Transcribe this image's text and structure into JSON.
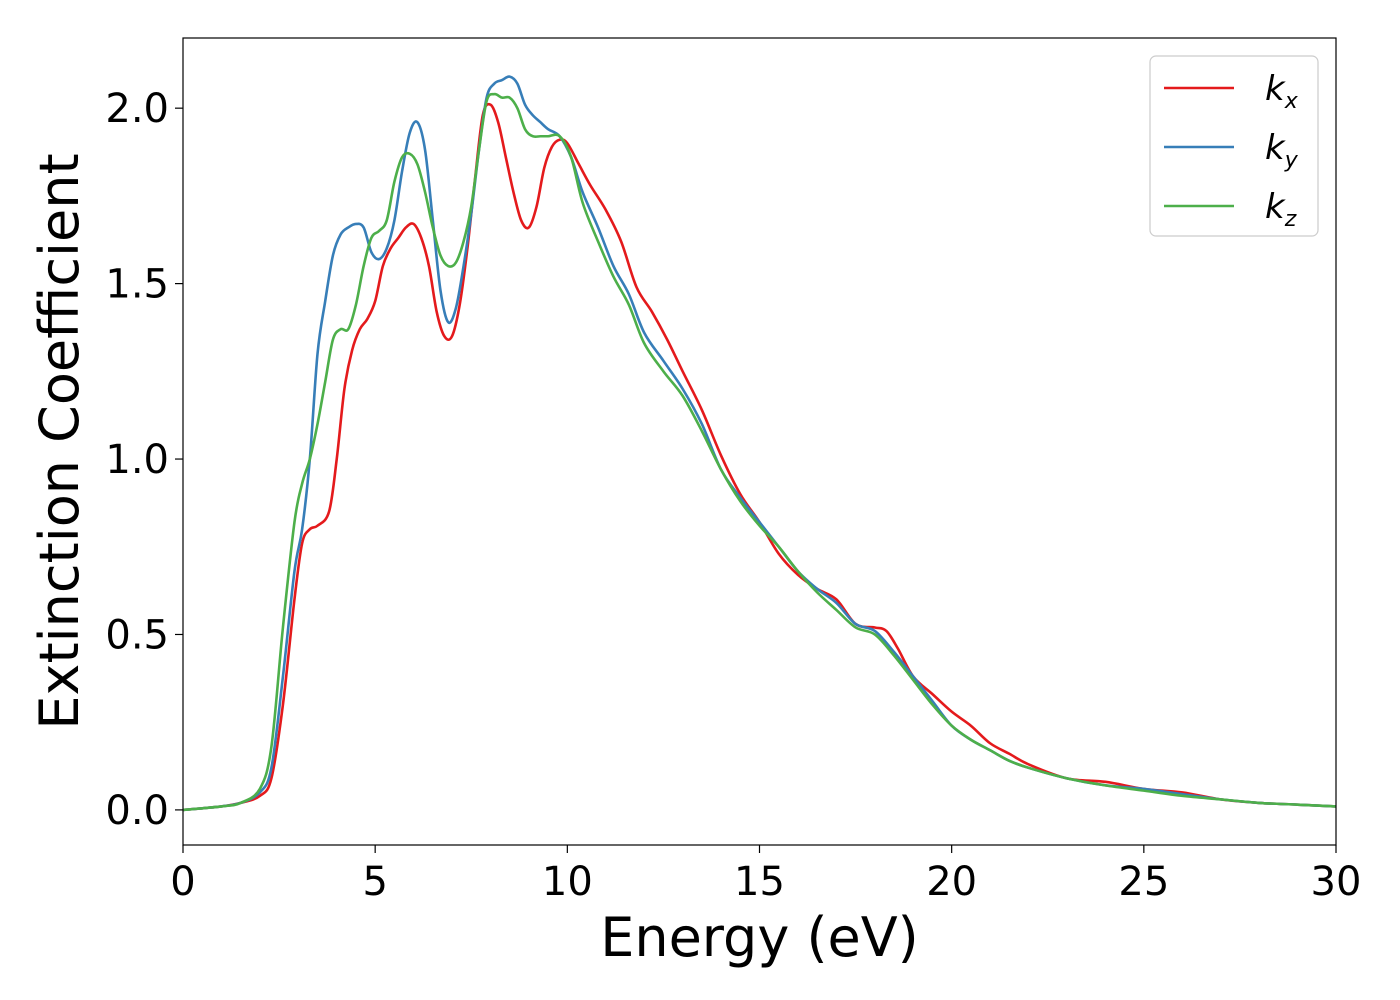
{
  "chart_data": {
    "type": "line",
    "title": "",
    "xlabel": "Energy (eV)",
    "ylabel": "Extinction Coefficient",
    "xlim": [
      0,
      30
    ],
    "ylim": [
      -0.1,
      2.2
    ],
    "xticks": [
      0,
      5,
      10,
      15,
      20,
      25,
      30
    ],
    "xtick_labels": [
      "0",
      "5",
      "10",
      "15",
      "20",
      "25",
      "30"
    ],
    "yticks": [
      0.0,
      0.5,
      1.0,
      1.5,
      2.0
    ],
    "ytick_labels": [
      "0.0",
      "0.5",
      "1.0",
      "1.5",
      "2.0"
    ],
    "grid": false,
    "legend_position": "top-right",
    "series": [
      {
        "name": "k",
        "subscript": "x",
        "color": "#e41a1c",
        "x": [
          0,
          1,
          1.5,
          2,
          2.3,
          2.6,
          2.9,
          3.1,
          3.3,
          3.5,
          3.8,
          4.0,
          4.2,
          4.4,
          4.6,
          4.8,
          5.0,
          5.2,
          5.4,
          5.6,
          5.8,
          6.0,
          6.2,
          6.4,
          6.6,
          6.8,
          7.0,
          7.2,
          7.4,
          7.6,
          7.8,
          8.0,
          8.2,
          8.4,
          8.6,
          8.8,
          9.0,
          9.2,
          9.4,
          9.6,
          9.8,
          10.0,
          10.3,
          10.6,
          11.0,
          11.4,
          11.8,
          12.2,
          12.6,
          13.0,
          13.5,
          14.0,
          14.5,
          15.0,
          15.5,
          16.0,
          16.5,
          17.0,
          17.5,
          18.0,
          18.3,
          18.6,
          19.0,
          19.5,
          20.0,
          20.5,
          21.0,
          21.5,
          22.0,
          23.0,
          24.0,
          25.0,
          26.0,
          27.0,
          28.0,
          29.0,
          30.0
        ],
        "y": [
          0.0,
          0.01,
          0.02,
          0.04,
          0.09,
          0.3,
          0.6,
          0.76,
          0.8,
          0.81,
          0.85,
          1.0,
          1.2,
          1.31,
          1.37,
          1.4,
          1.45,
          1.55,
          1.6,
          1.63,
          1.66,
          1.67,
          1.63,
          1.55,
          1.42,
          1.35,
          1.35,
          1.44,
          1.6,
          1.8,
          1.98,
          2.01,
          1.96,
          1.86,
          1.76,
          1.68,
          1.66,
          1.72,
          1.83,
          1.89,
          1.91,
          1.9,
          1.84,
          1.78,
          1.71,
          1.62,
          1.49,
          1.42,
          1.34,
          1.25,
          1.14,
          1.01,
          0.9,
          0.82,
          0.73,
          0.67,
          0.63,
          0.6,
          0.53,
          0.52,
          0.51,
          0.46,
          0.38,
          0.33,
          0.28,
          0.24,
          0.19,
          0.16,
          0.13,
          0.09,
          0.08,
          0.06,
          0.05,
          0.03,
          0.02,
          0.015,
          0.01
        ]
      },
      {
        "name": "k",
        "subscript": "y",
        "color": "#377eb8",
        "x": [
          0,
          1,
          1.5,
          2,
          2.3,
          2.6,
          2.9,
          3.1,
          3.3,
          3.5,
          3.7,
          3.9,
          4.1,
          4.3,
          4.5,
          4.7,
          4.9,
          5.1,
          5.3,
          5.5,
          5.7,
          5.9,
          6.1,
          6.3,
          6.5,
          6.7,
          6.9,
          7.1,
          7.3,
          7.5,
          7.7,
          7.9,
          8.1,
          8.3,
          8.5,
          8.7,
          8.9,
          9.1,
          9.3,
          9.5,
          9.8,
          10.1,
          10.4,
          10.8,
          11.2,
          11.6,
          12.0,
          12.5,
          13.0,
          13.5,
          14.0,
          14.5,
          15.0,
          15.5,
          16.0,
          16.5,
          17.0,
          17.5,
          18.0,
          18.5,
          19.0,
          19.5,
          20.0,
          20.5,
          21.0,
          21.5,
          22.0,
          23.0,
          24.0,
          25.0,
          26.0,
          27.0,
          28.0,
          29.0,
          30.0
        ],
        "y": [
          0.0,
          0.01,
          0.02,
          0.05,
          0.12,
          0.38,
          0.68,
          0.8,
          1.0,
          1.3,
          1.45,
          1.58,
          1.64,
          1.66,
          1.67,
          1.66,
          1.59,
          1.57,
          1.6,
          1.68,
          1.82,
          1.93,
          1.96,
          1.88,
          1.68,
          1.48,
          1.39,
          1.43,
          1.55,
          1.7,
          1.88,
          2.03,
          2.07,
          2.08,
          2.09,
          2.07,
          2.01,
          1.98,
          1.96,
          1.94,
          1.92,
          1.86,
          1.76,
          1.66,
          1.55,
          1.47,
          1.36,
          1.28,
          1.2,
          1.1,
          0.97,
          0.89,
          0.82,
          0.75,
          0.68,
          0.63,
          0.59,
          0.53,
          0.51,
          0.45,
          0.38,
          0.31,
          0.24,
          0.2,
          0.17,
          0.14,
          0.12,
          0.09,
          0.07,
          0.06,
          0.045,
          0.03,
          0.02,
          0.015,
          0.01
        ]
      },
      {
        "name": "k",
        "subscript": "z",
        "color": "#4daf4a",
        "x": [
          0,
          1,
          1.5,
          2,
          2.3,
          2.6,
          2.9,
          3.1,
          3.3,
          3.5,
          3.7,
          3.9,
          4.1,
          4.3,
          4.5,
          4.7,
          4.9,
          5.1,
          5.3,
          5.5,
          5.7,
          5.9,
          6.1,
          6.3,
          6.5,
          6.7,
          6.9,
          7.1,
          7.3,
          7.5,
          7.7,
          7.9,
          8.1,
          8.3,
          8.5,
          8.7,
          8.9,
          9.1,
          9.3,
          9.5,
          9.8,
          10.1,
          10.4,
          10.8,
          11.2,
          11.6,
          12.0,
          12.5,
          13.0,
          13.5,
          14.0,
          14.5,
          15.0,
          15.5,
          16.0,
          16.5,
          17.0,
          17.5,
          18.0,
          18.5,
          19.0,
          19.5,
          20.0,
          20.5,
          21.0,
          21.5,
          22.0,
          23.0,
          24.0,
          25.0,
          26.0,
          27.0,
          28.0,
          29.0,
          30.0
        ],
        "y": [
          0.0,
          0.01,
          0.02,
          0.06,
          0.18,
          0.52,
          0.82,
          0.93,
          1.0,
          1.1,
          1.22,
          1.34,
          1.37,
          1.37,
          1.44,
          1.55,
          1.63,
          1.65,
          1.68,
          1.79,
          1.86,
          1.87,
          1.84,
          1.76,
          1.66,
          1.58,
          1.55,
          1.56,
          1.62,
          1.72,
          1.88,
          2.02,
          2.04,
          2.03,
          2.03,
          2.0,
          1.94,
          1.92,
          1.92,
          1.92,
          1.92,
          1.86,
          1.73,
          1.62,
          1.52,
          1.44,
          1.33,
          1.25,
          1.18,
          1.08,
          0.97,
          0.88,
          0.81,
          0.75,
          0.68,
          0.62,
          0.57,
          0.52,
          0.5,
          0.44,
          0.37,
          0.3,
          0.24,
          0.2,
          0.17,
          0.14,
          0.12,
          0.09,
          0.07,
          0.055,
          0.04,
          0.03,
          0.02,
          0.015,
          0.01
        ]
      }
    ]
  }
}
